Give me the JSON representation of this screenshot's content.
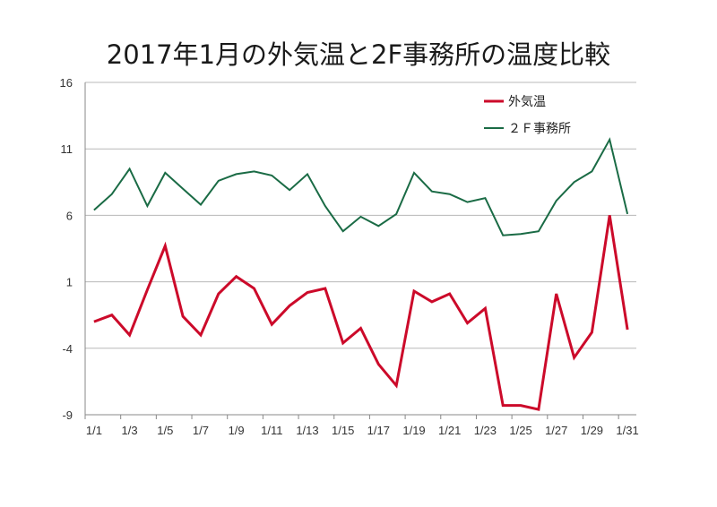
{
  "chart_data": {
    "type": "line",
    "title": "2017年1月の外気温と2F事務所の温度比較",
    "xlabel": "",
    "ylabel": "",
    "ylim": [
      -9,
      16
    ],
    "yticks": [
      "16",
      "11",
      "6",
      "1",
      "-4",
      "-9"
    ],
    "ytick_values": [
      16,
      11,
      6,
      1,
      -4,
      -9
    ],
    "grid": true,
    "legend_position": "top-right",
    "categories": [
      "1/1",
      "1/2",
      "1/3",
      "1/4",
      "1/5",
      "1/6",
      "1/7",
      "1/8",
      "1/9",
      "1/10",
      "1/11",
      "1/12",
      "1/13",
      "1/14",
      "1/15",
      "1/16",
      "1/17",
      "1/18",
      "1/19",
      "1/20",
      "1/21",
      "1/22",
      "1/23",
      "1/24",
      "1/25",
      "1/26",
      "1/27",
      "1/28",
      "1/29",
      "1/30",
      "1/31"
    ],
    "xtick_labels": [
      "1/1",
      "1/3",
      "1/5",
      "1/7",
      "1/9",
      "1/11",
      "1/13",
      "1/15",
      "1/17",
      "1/19",
      "1/21",
      "1/23",
      "1/25",
      "1/27",
      "1/29",
      "1/31"
    ],
    "series": [
      {
        "name": "外気温",
        "color": "#cc0a2a",
        "values": [
          -2.0,
          -1.5,
          -3.0,
          0.4,
          3.7,
          -1.6,
          -3.0,
          0.1,
          1.4,
          0.5,
          -2.2,
          -0.8,
          0.2,
          0.5,
          -3.6,
          -2.5,
          -5.2,
          -6.8,
          0.3,
          -0.5,
          0.1,
          -2.1,
          -1.0,
          -8.3,
          -8.3,
          -8.6,
          0.1,
          -4.7,
          -2.8,
          6.0,
          -2.6
        ]
      },
      {
        "name": "２Ｆ事務所",
        "color": "#1a6b45",
        "values": [
          6.4,
          7.6,
          9.5,
          6.7,
          9.2,
          8.0,
          6.8,
          8.6,
          9.1,
          9.3,
          9.0,
          7.9,
          9.1,
          6.7,
          4.8,
          5.9,
          5.2,
          6.1,
          9.2,
          7.8,
          7.6,
          7.0,
          7.3,
          4.5,
          4.6,
          4.8,
          7.1,
          8.5,
          9.3,
          11.7,
          6.1
        ]
      }
    ]
  }
}
